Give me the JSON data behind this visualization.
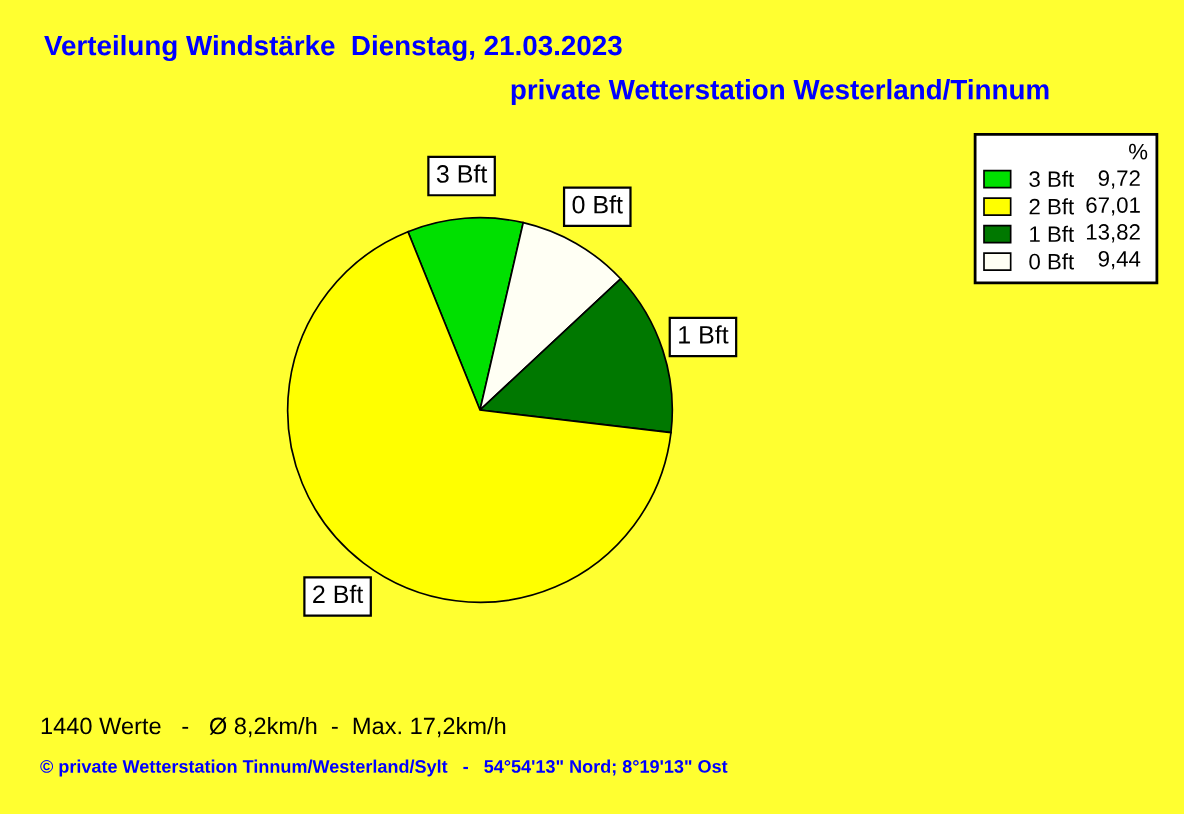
{
  "chart_data": {
    "type": "pie",
    "title": "Verteilung Windstärke  Dienstag, 21.03.2023",
    "subtitle": "private Wetterstation Westerland/Tinnum",
    "categories": [
      "3 Bft",
      "0 Bft",
      "1 Bft",
      "2 Bft"
    ],
    "values": [
      9.72,
      9.44,
      13.82,
      67.01
    ],
    "value_labels": [
      "9,72",
      "9,44",
      "13,82",
      "67,01"
    ],
    "colors": [
      "#00e000",
      "#fffff4",
      "#007800",
      "#ffff00"
    ],
    "legend": "top right",
    "legend_title": "%",
    "annotations": [
      "1440 Werte   -   Ø 8,2km/h  -  Max. 17,2km/h",
      "© private Wetterstation Tinnum/Westerland/Sylt   -   54°54'13\" Nord; 8°19'13\" Ost"
    ]
  }
}
